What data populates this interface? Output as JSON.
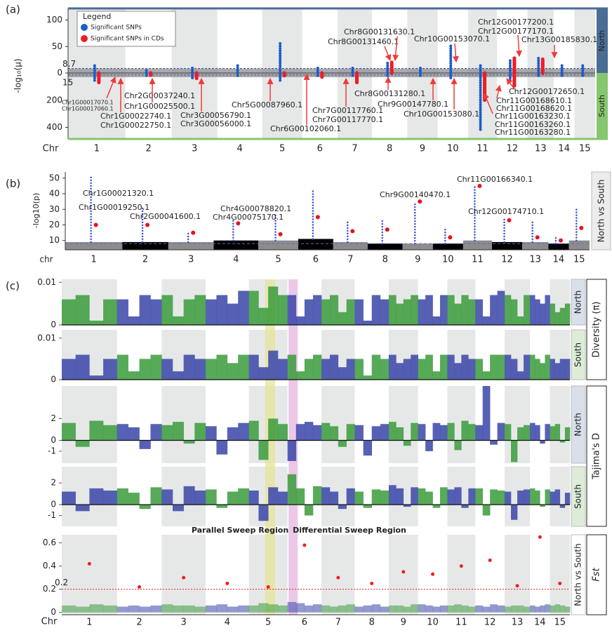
{
  "chart_data": [
    {
      "type": "mirrored-manhattan",
      "panel": "(a)",
      "y_label": "-log₁₀(μ)",
      "x_label": "Chr",
      "categories": [
        "1",
        "2",
        "3",
        "4",
        "5",
        "6",
        "7",
        "8",
        "9",
        "10",
        "11",
        "12",
        "13",
        "14",
        "15"
      ],
      "ylim": [
        0,
        122
      ],
      "yticks": [
        0,
        50,
        100
      ],
      "y2lim": [
        0,
        485
      ],
      "y2ticks": [
        200,
        400
      ],
      "north_threshold": 8.7,
      "south_threshold": 15,
      "threshold_color": "#3a56b0",
      "side_labels": [
        "North",
        "South"
      ],
      "side_colors": [
        "#4a6d96",
        "#86c66e"
      ],
      "legend_title": "Legend",
      "legend": "upper left",
      "series": [
        {
          "name": "Significant SNPs",
          "color": "#1a5cc8",
          "north": [
            14,
            8,
            10,
            14,
            58,
            12,
            10,
            22,
            12,
            55,
            16,
            25,
            32,
            14,
            14
          ],
          "south": [
            60,
            30,
            40,
            20,
            60,
            20,
            25,
            30,
            30,
            40,
            430,
            70,
            20,
            20,
            25
          ]
        },
        {
          "name": "Significant SNPs in CDs",
          "color": "#ee1c25",
          "north": [
            null,
            null,
            null,
            null,
            null,
            null,
            null,
            20,
            null,
            null,
            null,
            28,
            26,
            null,
            null
          ],
          "south": [
            70,
            15,
            40,
            null,
            20,
            30,
            70,
            null,
            null,
            null,
            200,
            95,
            null,
            null,
            null
          ]
        }
      ],
      "annotations": [
        "Chr8G00131630.1",
        "Chr8G00131460.1",
        "Chr10G00153070.1",
        "Chr12G00177200.1",
        "Chr12G00177170.1",
        "Chr13G00185830.1",
        "Chr1G00017070.1",
        "Chr1G00017060.1",
        "Chr1G00022740.1",
        "Chr1G00022750.1",
        "Chr1G00025500.1",
        "Chr2G00037240.1",
        "Chr3G00056790.1",
        "Chr3G00056000.1",
        "Chr5G00087960.1",
        "Chr6G00102060.1",
        "Chr7G00117760.1",
        "Chr7G00117770.1",
        "Chr8G00131280.1",
        "Chr9G00147780.1",
        "Chr10G00153080.1",
        "Chr11G00163230.1",
        "Chr11G00163260.1",
        "Chr11G00163280.1",
        "Chr11G00168610.1",
        "Chr11G00168620.1",
        "Chr12G00172650.1"
      ]
    },
    {
      "type": "manhattan",
      "panel": "(b)",
      "y_label": "-log10(p)",
      "x_label": "chr",
      "categories": [
        "1",
        "2",
        "3",
        "4",
        "5",
        "6",
        "7",
        "8",
        "9",
        "10",
        "11",
        "12",
        "13",
        "14",
        "15"
      ],
      "ylim": [
        4,
        54
      ],
      "yticks": [
        10,
        20,
        30,
        40,
        50
      ],
      "threshold": 8,
      "threshold_color": "#5a6fd0",
      "background": [
        9,
        9,
        9,
        10,
        10,
        11,
        9,
        8,
        8,
        8,
        10,
        9,
        9,
        8,
        10
      ],
      "background_colors": [
        "#8c8c8c",
        "#000000"
      ],
      "series": [
        {
          "color": "#3a50d0",
          "values": [
            51,
            31,
            16,
            24,
            27,
            42,
            22,
            24,
            35,
            18,
            45,
            25,
            22,
            12,
            30
          ]
        },
        {
          "color": "#e8121c",
          "values": [
            20,
            20,
            15,
            21,
            14,
            25,
            16,
            17,
            35,
            12,
            45,
            23,
            12,
            10,
            18
          ]
        }
      ],
      "side_label": "North vs South",
      "annotations": [
        "Chr1G00021320.1",
        "Chr1G00019250.1",
        "Chr2G00041600.1",
        "Chr4G00078820.1",
        "Chr4G00075170.1",
        "Chr9G00140470.1",
        "Chr11G00166340.1",
        "Chr12G00174710.1"
      ]
    },
    {
      "type": "density",
      "panel": "(c)",
      "group": "Diversity (π)",
      "side_label": "North",
      "side_color": "#d9dfea",
      "ylim": [
        0,
        0.0107
      ],
      "yticks": [
        0,
        0.01
      ],
      "colors": [
        "#3a9b3a",
        "#3845a8"
      ],
      "values": [
        [
          0.006,
          0.007,
          0.001,
          0.006
        ],
        [
          0.006,
          0.002,
          0.007,
          0.006
        ],
        [
          0.007,
          0.002,
          0.006,
          0.007
        ],
        [
          0.006,
          0.007,
          0.005,
          0.008
        ],
        [
          0.008,
          0.004,
          0.009,
          0.007
        ],
        [
          0.007,
          0.002,
          0.006,
          0.007
        ],
        [
          0.006,
          0.007,
          0.003,
          0.006
        ],
        [
          0.006,
          0.001,
          0.007,
          0.006
        ],
        [
          0.007,
          0.005,
          0.006,
          0.007
        ],
        [
          0.006,
          0.007,
          0.002,
          0.007
        ],
        [
          0.007,
          0.005,
          0.007,
          0.006
        ],
        [
          0.006,
          0.002,
          0.007,
          0.008
        ],
        [
          0.007,
          0.006,
          0.002,
          0.007
        ],
        [
          0.007,
          0.006,
          0.005,
          0.007
        ],
        [
          0.005,
          0.003,
          0.004,
          0.005
        ]
      ]
    },
    {
      "type": "density",
      "side_label": "South",
      "side_color": "#dcecd6",
      "ylim": [
        0,
        0.012
      ],
      "yticks": [
        0,
        0.01
      ],
      "colors": [
        "#3845a8",
        "#3a9b3a"
      ],
      "values": [
        [
          0.005,
          0.006,
          0.001,
          0.005
        ],
        [
          0.006,
          0.002,
          0.005,
          0.006
        ],
        [
          0.005,
          0.002,
          0.006,
          0.005
        ],
        [
          0.005,
          0.006,
          0.004,
          0.006
        ],
        [
          0.006,
          0.003,
          0.007,
          0.005
        ],
        [
          0.006,
          0.002,
          0.005,
          0.006
        ],
        [
          0.005,
          0.006,
          0.003,
          0.005
        ],
        [
          0.005,
          0.001,
          0.006,
          0.005
        ],
        [
          0.006,
          0.004,
          0.005,
          0.006
        ],
        [
          0.005,
          0.006,
          0.002,
          0.006
        ],
        [
          0.006,
          0.004,
          0.006,
          0.005
        ],
        [
          0.005,
          0.002,
          0.006,
          0.006
        ],
        [
          0.006,
          0.005,
          0.002,
          0.006
        ],
        [
          0.006,
          0.005,
          0.004,
          0.006
        ],
        [
          0.005,
          0.004,
          0.005,
          0.005
        ]
      ]
    },
    {
      "type": "density",
      "group": "Tajima's D",
      "side_label": "North",
      "side_color": "#d9dfea",
      "ylim": [
        -2.1,
        5
      ],
      "yticks": [
        -1,
        0,
        2
      ],
      "colors": [
        "#3a9b3a",
        "#3845a8"
      ],
      "values": [
        [
          1.6,
          -0.6,
          1.8,
          1.4
        ],
        [
          1.5,
          1.2,
          -0.8,
          1.5
        ],
        [
          1.4,
          1.7,
          -0.3,
          1.6
        ],
        [
          1.3,
          -1.3,
          1.2,
          1.6
        ],
        [
          1.8,
          -1.8,
          2.0,
          1.5
        ],
        [
          -1.9,
          1.5,
          1.7,
          1.4
        ],
        [
          1.6,
          1.3,
          -0.6,
          1.5
        ],
        [
          1.4,
          -1.4,
          1.3,
          1.5
        ],
        [
          1.7,
          1.2,
          -0.5,
          1.6
        ],
        [
          1.5,
          -1.0,
          1.6,
          1.4
        ],
        [
          1.6,
          -0.9,
          1.8,
          1.5
        ],
        [
          1.4,
          5.0,
          -0.4,
          1.6
        ],
        [
          1.5,
          -2.0,
          1.2,
          1.4
        ],
        [
          1.6,
          1.4,
          -0.3,
          1.5
        ],
        [
          1.3,
          1.5,
          -0.2,
          1.2
        ]
      ]
    },
    {
      "type": "density",
      "side_label": "South",
      "side_color": "#dcecd6",
      "ylim": [
        -2,
        3.5
      ],
      "yticks": [
        -1,
        0,
        2
      ],
      "colors": [
        "#3845a8",
        "#3a9b3a"
      ],
      "values": [
        [
          1.2,
          -0.6,
          1.5,
          1.3
        ],
        [
          1.5,
          1.1,
          -0.4,
          1.6
        ],
        [
          1.4,
          -0.6,
          1.7,
          1.3
        ],
        [
          1.4,
          -0.3,
          1.2,
          1.5
        ],
        [
          1.3,
          -1.5,
          1.6,
          1.2
        ],
        [
          2.8,
          1.5,
          -1.0,
          1.7
        ],
        [
          1.6,
          1.2,
          -0.4,
          1.5
        ],
        [
          1.2,
          -0.3,
          1.4,
          1.3
        ],
        [
          1.8,
          1.5,
          -0.2,
          1.6
        ],
        [
          1.5,
          1.2,
          -0.3,
          1.6
        ],
        [
          1.4,
          1.6,
          -0.3,
          1.5
        ],
        [
          1.5,
          -1.0,
          1.4,
          1.3
        ],
        [
          1.2,
          -1.4,
          1.3,
          1.4
        ],
        [
          1.5,
          1.3,
          -0.2,
          1.4
        ],
        [
          1.2,
          1.4,
          -0.3,
          1.1
        ]
      ]
    },
    {
      "type": "fst",
      "group": "Fst",
      "side_label": "North vs South",
      "side_color": "#ffffff",
      "x_label": "Chr",
      "categories": [
        "1",
        "2",
        "3",
        "4",
        "5",
        "6",
        "7",
        "8",
        "9",
        "10",
        "11",
        "12",
        "13",
        "14",
        "15"
      ],
      "ylim": [
        -0.02,
        0.67
      ],
      "yticks": [
        0,
        0.2,
        0.4,
        0.6
      ],
      "colors": [
        "#3a9b3a",
        "#3845a8"
      ],
      "threshold": 0.2,
      "threshold_color": "#e82020",
      "values": [
        [
          0.06,
          0.05,
          0.07,
          0.06
        ],
        [
          0.05,
          0.06,
          0.05,
          0.06
        ],
        [
          0.07,
          0.06,
          0.06,
          0.05
        ],
        [
          0.06,
          0.07,
          0.05,
          0.06
        ],
        [
          0.06,
          0.08,
          0.07,
          0.06
        ],
        [
          0.09,
          0.08,
          0.06,
          0.07
        ],
        [
          0.06,
          0.05,
          0.06,
          0.07
        ],
        [
          0.05,
          0.06,
          0.07,
          0.05
        ],
        [
          0.06,
          0.06,
          0.05,
          0.07
        ],
        [
          0.07,
          0.06,
          0.05,
          0.06
        ],
        [
          0.06,
          0.07,
          0.06,
          0.05
        ],
        [
          0.06,
          0.05,
          0.07,
          0.06
        ],
        [
          0.05,
          0.06,
          0.06,
          0.05
        ],
        [
          0.06,
          0.05,
          0.06,
          0.07
        ],
        [
          0.06,
          0.07,
          0.06,
          0.05
        ]
      ],
      "max_values": [
        0.42,
        0.22,
        0.3,
        0.25,
        0.22,
        0.58,
        0.3,
        0.25,
        0.35,
        0.33,
        0.4,
        0.45,
        0.23,
        0.65,
        0.25
      ],
      "max_color": "#ee2020",
      "regions": [
        {
          "label": "Parallel Sweep Region",
          "color": "#e6e49a"
        },
        {
          "label": "Differential Sweep Region",
          "color": "#e6b6e0"
        }
      ]
    }
  ]
}
